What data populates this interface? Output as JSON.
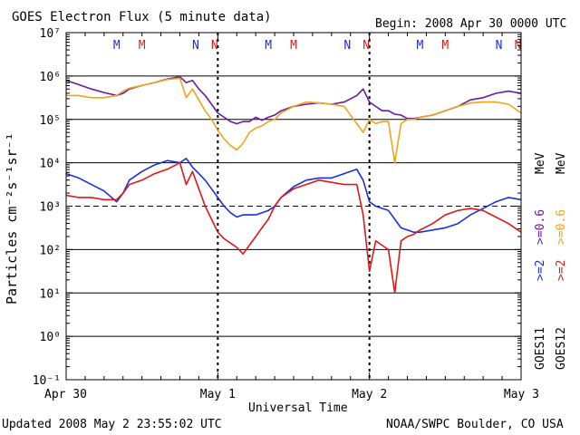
{
  "header": {
    "title": "GOES Electron Flux (5 minute data)",
    "begin": "Begin: 2008 Apr 30 0000 UTC"
  },
  "footer": {
    "updated": "Updated 2008 May  2 23:55:02 UTC",
    "credit": "NOAA/SWPC Boulder, CO USA"
  },
  "colors": {
    "blue": "#1a2fe0",
    "red": "#e01818",
    "purple": "#6a1aa6",
    "orange": "#f0a418"
  },
  "chart_data": {
    "type": "line",
    "title": "GOES Electron Flux (5 minute data)",
    "xlabel": "Universal Time",
    "ylabel": "Particles cm⁻²s⁻¹sr⁻¹",
    "yscale": "log",
    "ylim_exponent": [
      -1,
      7
    ],
    "y_tick_labels": [
      "10⁷",
      "10⁶",
      "10⁵",
      "10⁴",
      "10³",
      "10²",
      "10¹",
      "10⁰",
      "10⁻¹"
    ],
    "xlim_hours": [
      0,
      72
    ],
    "x_tick_labels": [
      {
        "hour": 0,
        "label": "Apr 30"
      },
      {
        "hour": 24,
        "label": "May 1"
      },
      {
        "hour": 48,
        "label": "May 2"
      },
      {
        "hour": 72,
        "label": "May 3"
      }
    ],
    "threshold_exponent": 3,
    "markers": [
      {
        "hour": 8.0,
        "label": "M",
        "color": "blue"
      },
      {
        "hour": 12.0,
        "label": "M",
        "color": "red"
      },
      {
        "hour": 20.5,
        "label": "N",
        "color": "blue"
      },
      {
        "hour": 23.5,
        "label": "N",
        "color": "red"
      },
      {
        "hour": 32.0,
        "label": "M",
        "color": "blue"
      },
      {
        "hour": 36.0,
        "label": "M",
        "color": "red"
      },
      {
        "hour": 44.5,
        "label": "N",
        "color": "blue"
      },
      {
        "hour": 47.5,
        "label": "N",
        "color": "red"
      },
      {
        "hour": 56.0,
        "label": "M",
        "color": "blue"
      },
      {
        "hour": 60.0,
        "label": "M",
        "color": "red"
      },
      {
        "hour": 68.5,
        "label": "N",
        "color": "blue"
      },
      {
        "hour": 71.5,
        "label": "N",
        "color": "red"
      }
    ],
    "legend": {
      "goes11": "GOES11",
      "goes12": "GOES12",
      "mev": "MeV",
      "e2_label": ">=2",
      "e06_label": ">=0.6"
    },
    "series": [
      {
        "name": "GOES11 >=0.6 MeV",
        "color": "purple",
        "x": [
          0,
          2,
          4,
          6,
          8,
          9,
          10,
          12,
          14,
          16,
          18,
          19,
          20,
          21,
          22,
          23,
          24,
          25,
          26,
          27,
          28,
          29,
          30,
          31,
          32,
          33,
          34,
          36,
          38,
          40,
          42,
          44,
          46,
          47,
          48,
          49,
          50,
          51,
          52,
          53,
          54,
          55,
          56,
          58,
          60,
          62,
          64,
          66,
          68,
          70,
          72
        ],
        "log_values": [
          5.9,
          5.8,
          5.7,
          5.62,
          5.55,
          5.6,
          5.7,
          5.78,
          5.85,
          5.93,
          5.98,
          5.85,
          5.9,
          5.7,
          5.55,
          5.35,
          5.15,
          5.05,
          4.95,
          4.9,
          4.95,
          4.95,
          5.05,
          4.98,
          5.05,
          5.1,
          5.2,
          5.3,
          5.35,
          5.38,
          5.35,
          5.4,
          5.55,
          5.7,
          5.4,
          5.3,
          5.2,
          5.2,
          5.12,
          5.1,
          5.02,
          5.02,
          5.05,
          5.1,
          5.2,
          5.3,
          5.45,
          5.5,
          5.6,
          5.65,
          5.6
        ]
      },
      {
        "name": "GOES12 >=0.6 MeV",
        "color": "orange",
        "x": [
          0,
          2,
          4,
          6,
          8,
          9,
          10,
          12,
          14,
          16,
          18,
          19,
          20,
          21,
          22,
          23,
          24,
          25,
          26,
          27,
          28,
          29,
          30,
          31,
          32,
          33,
          34,
          36,
          38,
          40,
          42,
          44,
          46,
          47,
          48,
          49,
          50,
          51,
          52,
          53,
          54,
          55,
          56,
          58,
          60,
          62,
          64,
          66,
          68,
          70,
          72
        ],
        "log_values": [
          5.55,
          5.55,
          5.5,
          5.5,
          5.55,
          5.65,
          5.72,
          5.78,
          5.85,
          5.92,
          5.95,
          5.5,
          5.7,
          5.45,
          5.2,
          5.0,
          4.75,
          4.55,
          4.4,
          4.3,
          4.45,
          4.7,
          4.8,
          4.85,
          4.95,
          5.0,
          5.15,
          5.3,
          5.4,
          5.38,
          5.35,
          5.3,
          4.9,
          4.7,
          5.0,
          4.9,
          4.95,
          4.95,
          4.0,
          4.9,
          5.0,
          5.0,
          5.05,
          5.1,
          5.2,
          5.3,
          5.38,
          5.4,
          5.4,
          5.35,
          5.15
        ]
      },
      {
        "name": "GOES11 >=2 MeV",
        "color": "blue",
        "x": [
          0,
          2,
          4,
          6,
          8,
          9,
          10,
          12,
          14,
          16,
          18,
          19,
          20,
          21,
          22,
          23,
          24,
          25,
          26,
          27,
          28,
          29,
          30,
          31,
          32,
          33,
          34,
          36,
          38,
          40,
          42,
          44,
          46,
          47,
          48,
          49,
          50,
          51,
          52,
          53,
          54,
          55,
          56,
          58,
          60,
          62,
          64,
          66,
          68,
          70,
          72
        ],
        "log_values": [
          3.75,
          3.65,
          3.5,
          3.35,
          3.1,
          3.3,
          3.6,
          3.8,
          3.95,
          4.05,
          4.0,
          4.1,
          3.9,
          3.75,
          3.6,
          3.4,
          3.2,
          3.0,
          2.85,
          2.75,
          2.8,
          2.8,
          2.8,
          2.85,
          2.9,
          3.0,
          3.2,
          3.45,
          3.6,
          3.65,
          3.65,
          3.75,
          3.85,
          3.6,
          3.1,
          3.0,
          2.95,
          2.9,
          2.7,
          2.5,
          2.45,
          2.4,
          2.4,
          2.45,
          2.5,
          2.6,
          2.8,
          2.95,
          3.1,
          3.2,
          3.15
        ]
      },
      {
        "name": "GOES12 >=2 MeV",
        "color": "red",
        "x": [
          0,
          2,
          4,
          6,
          8,
          9,
          10,
          12,
          14,
          16,
          18,
          19,
          20,
          21,
          22,
          23,
          24,
          25,
          26,
          27,
          28,
          29,
          30,
          31,
          32,
          33,
          34,
          36,
          38,
          40,
          42,
          44,
          46,
          47,
          48,
          49,
          50,
          51,
          52,
          53,
          54,
          55,
          56,
          58,
          60,
          62,
          64,
          66,
          68,
          70,
          72
        ],
        "log_values": [
          3.25,
          3.2,
          3.2,
          3.15,
          3.15,
          3.3,
          3.5,
          3.6,
          3.75,
          3.85,
          4.0,
          3.5,
          3.8,
          3.4,
          3.0,
          2.7,
          2.4,
          2.25,
          2.15,
          2.05,
          1.9,
          2.1,
          2.3,
          2.5,
          2.7,
          3.0,
          3.2,
          3.4,
          3.5,
          3.6,
          3.55,
          3.5,
          3.5,
          2.8,
          1.5,
          2.2,
          2.1,
          2.0,
          1.0,
          2.2,
          2.3,
          2.35,
          2.45,
          2.6,
          2.8,
          2.9,
          2.95,
          2.9,
          2.75,
          2.6,
          2.4
        ]
      }
    ]
  }
}
